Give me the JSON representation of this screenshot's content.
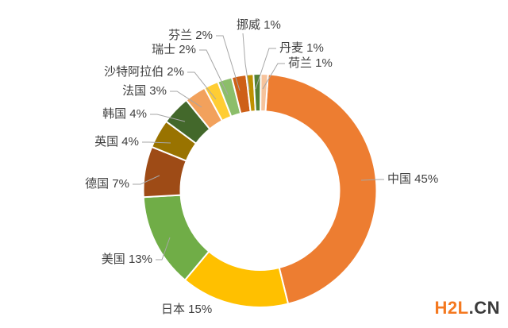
{
  "chart_data": {
    "type": "pie",
    "subtype": "donut",
    "title": "",
    "unit": "%",
    "direction": "clockwise",
    "start_angle_deg": 4,
    "legend_position": "none",
    "grid": false,
    "categories": [
      "中国",
      "日本",
      "美国",
      "德国",
      "英国",
      "韩国",
      "法国",
      "沙特阿拉伯",
      "瑞士",
      "芬兰",
      "挪威",
      "丹麦",
      "荷兰"
    ],
    "values": [
      45,
      15,
      13,
      7,
      4,
      4,
      3,
      2,
      2,
      2,
      1,
      1,
      1
    ],
    "colors": [
      "#ED7D31",
      "#FFC000",
      "#70AD47",
      "#9E4B16",
      "#997300",
      "#43682B",
      "#F2A15C",
      "#FFCD33",
      "#8CBE6A",
      "#CE6017",
      "#BF9000",
      "#538135",
      "#F6C39C"
    ],
    "labels": [
      "中国 45%",
      "日本 15%",
      "美国 13%",
      "德国 7%",
      "英国 4%",
      "韩国 4%",
      "法国 3%",
      "沙特阿拉伯 2%",
      "瑞士 2%",
      "芬兰 2%",
      "挪威 1%",
      "丹麦 1%",
      "荷兰 1%"
    ],
    "label_color": "#404040",
    "leader_line_color": "#A6A6A6",
    "slice_border_color": "#FFFFFF"
  },
  "watermark": {
    "primary": "H2L",
    "secondary": ".CN",
    "primary_color": "#F47920",
    "secondary_color": "#3B3B3B"
  }
}
